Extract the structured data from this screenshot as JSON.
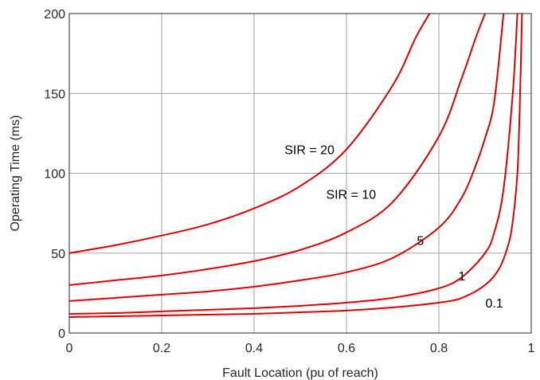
{
  "chart_data": {
    "type": "line",
    "title": "",
    "xlabel": "Fault Location (pu of reach)",
    "ylabel": "Operating Time (ms)",
    "xlim": [
      0,
      1
    ],
    "ylim": [
      0,
      200
    ],
    "xticks": [
      0,
      0.2,
      0.4,
      0.6,
      0.8,
      1
    ],
    "xtick_labels": [
      "0",
      "0.2",
      "0.4",
      "0.6",
      "0.8",
      "1"
    ],
    "yticks": [
      0,
      50,
      100,
      150,
      200
    ],
    "ytick_labels": [
      "0",
      "50",
      "100",
      "150",
      "200"
    ],
    "grid": true,
    "line_color": "#e00000",
    "series": [
      {
        "name": "SIR = 20",
        "x": [
          0,
          0.1,
          0.2,
          0.3,
          0.4,
          0.5,
          0.6,
          0.7,
          0.75,
          0.78
        ],
        "y": [
          50,
          55,
          61,
          68,
          78,
          92,
          115,
          155,
          185,
          200
        ]
      },
      {
        "name": "SIR = 10",
        "x": [
          0,
          0.1,
          0.2,
          0.3,
          0.4,
          0.5,
          0.6,
          0.7,
          0.8,
          0.85,
          0.88,
          0.9
        ],
        "y": [
          30,
          33,
          36,
          40,
          45,
          52,
          63,
          82,
          123,
          160,
          185,
          200
        ]
      },
      {
        "name": "5",
        "x": [
          0,
          0.1,
          0.2,
          0.3,
          0.4,
          0.5,
          0.6,
          0.7,
          0.8,
          0.85,
          0.88,
          0.9,
          0.92,
          0.94
        ],
        "y": [
          20,
          22,
          24,
          26,
          29,
          33,
          38,
          47,
          66,
          85,
          105,
          122,
          145,
          200
        ]
      },
      {
        "name": "1",
        "x": [
          0,
          0.1,
          0.2,
          0.3,
          0.4,
          0.5,
          0.6,
          0.7,
          0.8,
          0.85,
          0.9,
          0.92,
          0.94,
          0.96,
          0.97
        ],
        "y": [
          12,
          12.5,
          13.5,
          14.5,
          15.5,
          17,
          19,
          22,
          28,
          35,
          50,
          63,
          90,
          150,
          200
        ]
      },
      {
        "name": "0.1",
        "x": [
          0,
          0.1,
          0.2,
          0.3,
          0.4,
          0.5,
          0.6,
          0.7,
          0.8,
          0.85,
          0.9,
          0.93,
          0.95,
          0.96,
          0.97,
          0.975,
          0.98
        ],
        "y": [
          10,
          10.5,
          11,
          11.5,
          12,
          13,
          14,
          16,
          19,
          22,
          30,
          40,
          55,
          70,
          100,
          140,
          200
        ]
      }
    ],
    "annotations": [
      {
        "text": "SIR = 20",
        "x": 0.52,
        "y": 115
      },
      {
        "text": "SIR = 10",
        "x": 0.61,
        "y": 87
      },
      {
        "text": "5",
        "x": 0.76,
        "y": 58
      },
      {
        "text": "1",
        "x": 0.85,
        "y": 36
      },
      {
        "text": "0.1",
        "x": 0.92,
        "y": 19
      }
    ]
  }
}
